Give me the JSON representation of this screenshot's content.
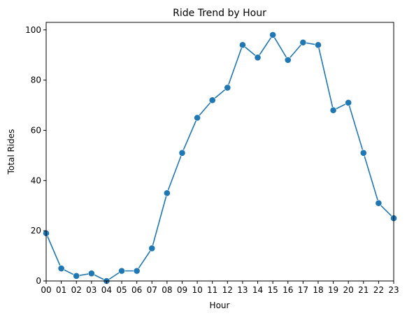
{
  "chart_data": {
    "type": "line",
    "title": "Ride Trend by Hour",
    "xlabel": "Hour",
    "ylabel": "Total Rides",
    "x": [
      "00",
      "01",
      "02",
      "03",
      "04",
      "05",
      "06",
      "07",
      "08",
      "09",
      "10",
      "11",
      "12",
      "13",
      "14",
      "15",
      "16",
      "17",
      "18",
      "19",
      "20",
      "21",
      "22",
      "23"
    ],
    "series": [
      {
        "values": [
          19,
          5,
          2,
          3,
          0,
          4,
          4,
          13,
          35,
          51,
          65,
          72,
          77,
          94,
          89,
          98,
          88,
          95,
          94,
          68,
          71,
          51,
          31,
          25
        ],
        "color": "#1f77b4",
        "marker": "circle"
      }
    ],
    "ylim": [
      0,
      103
    ],
    "yticks": [
      0,
      20,
      40,
      60,
      80,
      100
    ],
    "grid": false,
    "legend": "none"
  }
}
